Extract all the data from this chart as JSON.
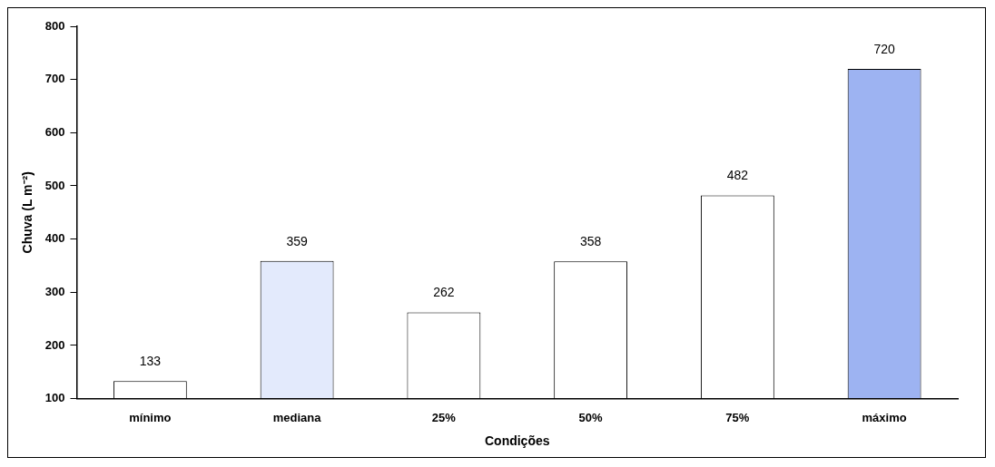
{
  "chart_data": {
    "type": "bar",
    "xlabel": "Condições",
    "ylabel": "Chuva (L m⁻²)",
    "categories": [
      "mínimo",
      "mediana",
      "25%",
      "50%",
      "75%",
      "máximo"
    ],
    "values": [
      133,
      359,
      262,
      358,
      482,
      720
    ],
    "colors": [
      "#ffffff",
      "#e3eafc",
      "#ffffff",
      "#ffffff",
      "#ffffff",
      "#9db3f2"
    ],
    "ylim": [
      100,
      800
    ],
    "yticks": [
      100,
      200,
      300,
      400,
      500,
      600,
      700,
      800
    ],
    "data_labels": true,
    "grid": false,
    "legend": false
  }
}
